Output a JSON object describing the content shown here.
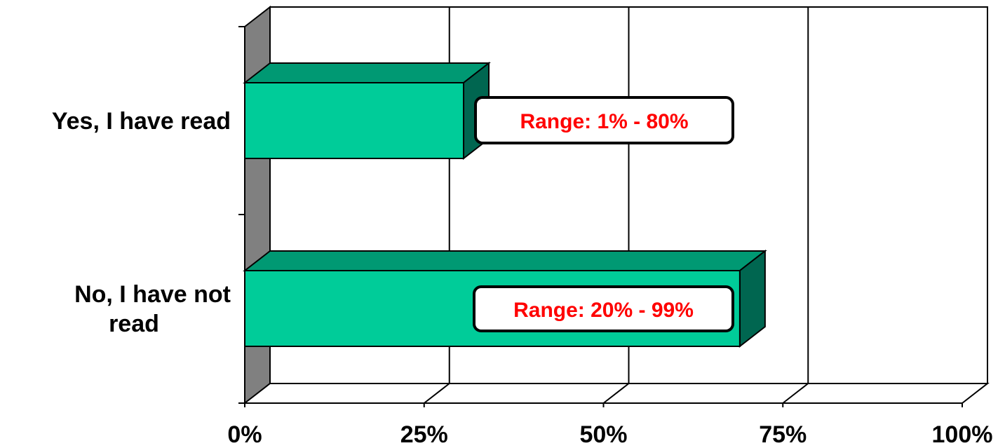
{
  "chart_data": {
    "type": "bar",
    "orientation": "horizontal",
    "style": "3d",
    "categories": [
      "Yes, I have read",
      "No, I have not read"
    ],
    "values": [
      30.5,
      69
    ],
    "xlim": [
      0,
      100
    ],
    "ticks": [
      {
        "value": 0,
        "label": "0%"
      },
      {
        "value": 25,
        "label": "25%"
      },
      {
        "value": 50,
        "label": "50%"
      },
      {
        "value": 75,
        "label": "75%"
      },
      {
        "value": 100,
        "label": "100%"
      }
    ],
    "category_labels": [
      [
        "Yes, I have read"
      ],
      [
        "No, I have not",
        "read"
      ]
    ],
    "annotations": [
      "Range:  1% - 80%",
      "Range:  20% - 99%"
    ],
    "grid": true,
    "legend": "none"
  },
  "colors": {
    "bar_front": "#00CC99",
    "bar_top": "#009973",
    "bar_side": "#006650",
    "side_wall": "#808080",
    "annotation_text": "#FF0000",
    "axis": "#000000"
  }
}
